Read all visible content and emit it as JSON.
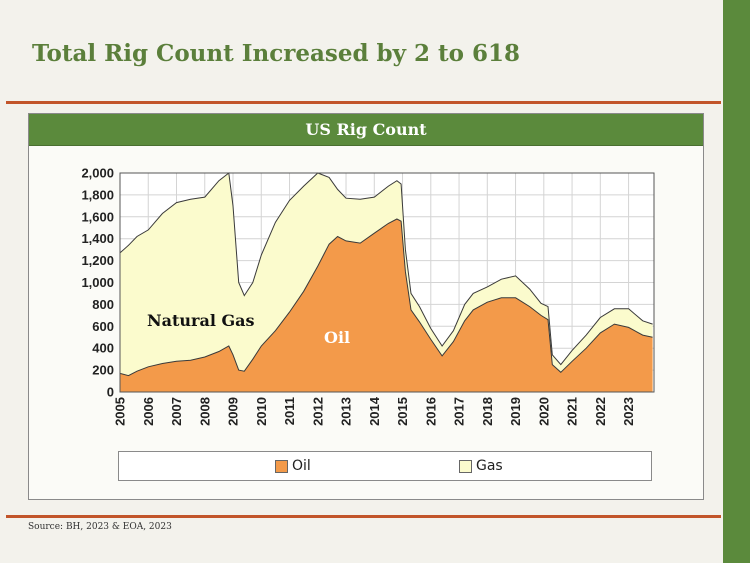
{
  "slide": {
    "title": "Total Rig Count Increased by 2 to 618",
    "source": "Source: BH, 2023 & EOA, 2023"
  },
  "colors": {
    "green_bar": "#5b8a3c",
    "title_green": "#5b7f3b",
    "rule_orange": "#c2552a",
    "oil": "#f39a4a",
    "gas": "#fbfbcd"
  },
  "chart_data": {
    "type": "area",
    "title": "US Rig Count",
    "ylim": [
      0,
      2000
    ],
    "yticks": [
      "0",
      "200",
      "400",
      "600",
      "800",
      "1,000",
      "1,200",
      "1,400",
      "1,600",
      "1,800",
      "2,000"
    ],
    "xticks": [
      "2005",
      "2006",
      "2007",
      "2008",
      "2009",
      "2010",
      "2011",
      "2012",
      "2013",
      "2014",
      "2015",
      "2016",
      "2017",
      "2018",
      "2019",
      "2020",
      "2021",
      "2022",
      "2023"
    ],
    "grid": true,
    "legend": "bottom",
    "annotations": [
      "Natural Gas",
      "Oil"
    ],
    "series": [
      {
        "name": "Oil",
        "stack": "bottom",
        "points": [
          [
            2005.0,
            170
          ],
          [
            2005.3,
            150
          ],
          [
            2005.6,
            190
          ],
          [
            2006.0,
            230
          ],
          [
            2006.5,
            260
          ],
          [
            2007.0,
            280
          ],
          [
            2007.5,
            290
          ],
          [
            2008.0,
            320
          ],
          [
            2008.5,
            370
          ],
          [
            2008.85,
            420
          ],
          [
            2009.0,
            340
          ],
          [
            2009.2,
            200
          ],
          [
            2009.4,
            190
          ],
          [
            2009.7,
            300
          ],
          [
            2010.0,
            420
          ],
          [
            2010.5,
            560
          ],
          [
            2011.0,
            730
          ],
          [
            2011.5,
            920
          ],
          [
            2012.0,
            1150
          ],
          [
            2012.4,
            1350
          ],
          [
            2012.7,
            1420
          ],
          [
            2013.0,
            1380
          ],
          [
            2013.5,
            1360
          ],
          [
            2014.0,
            1450
          ],
          [
            2014.5,
            1540
          ],
          [
            2014.8,
            1580
          ],
          [
            2014.95,
            1560
          ],
          [
            2015.1,
            1100
          ],
          [
            2015.3,
            750
          ],
          [
            2015.6,
            640
          ],
          [
            2016.0,
            480
          ],
          [
            2016.4,
            330
          ],
          [
            2016.8,
            460
          ],
          [
            2017.2,
            650
          ],
          [
            2017.5,
            750
          ],
          [
            2018.0,
            820
          ],
          [
            2018.5,
            860
          ],
          [
            2019.0,
            860
          ],
          [
            2019.5,
            780
          ],
          [
            2019.9,
            700
          ],
          [
            2020.15,
            660
          ],
          [
            2020.3,
            250
          ],
          [
            2020.6,
            180
          ],
          [
            2021.0,
            280
          ],
          [
            2021.5,
            400
          ],
          [
            2022.0,
            540
          ],
          [
            2022.5,
            620
          ],
          [
            2023.0,
            590
          ],
          [
            2023.5,
            520
          ],
          [
            2023.85,
            500
          ]
        ]
      },
      {
        "name": "Gas",
        "stack": "total",
        "points": [
          [
            2005.0,
            1270
          ],
          [
            2005.3,
            1340
          ],
          [
            2005.6,
            1420
          ],
          [
            2006.0,
            1480
          ],
          [
            2006.5,
            1630
          ],
          [
            2007.0,
            1730
          ],
          [
            2007.5,
            1760
          ],
          [
            2008.0,
            1780
          ],
          [
            2008.5,
            1930
          ],
          [
            2008.85,
            2000
          ],
          [
            2009.0,
            1700
          ],
          [
            2009.2,
            1000
          ],
          [
            2009.4,
            880
          ],
          [
            2009.7,
            1000
          ],
          [
            2010.0,
            1250
          ],
          [
            2010.5,
            1550
          ],
          [
            2011.0,
            1750
          ],
          [
            2011.5,
            1880
          ],
          [
            2012.0,
            2000
          ],
          [
            2012.4,
            1960
          ],
          [
            2012.7,
            1850
          ],
          [
            2013.0,
            1770
          ],
          [
            2013.5,
            1760
          ],
          [
            2014.0,
            1780
          ],
          [
            2014.5,
            1880
          ],
          [
            2014.8,
            1930
          ],
          [
            2014.95,
            1900
          ],
          [
            2015.1,
            1300
          ],
          [
            2015.3,
            900
          ],
          [
            2015.6,
            780
          ],
          [
            2016.0,
            580
          ],
          [
            2016.4,
            420
          ],
          [
            2016.8,
            560
          ],
          [
            2017.2,
            800
          ],
          [
            2017.5,
            900
          ],
          [
            2018.0,
            960
          ],
          [
            2018.5,
            1030
          ],
          [
            2019.0,
            1060
          ],
          [
            2019.5,
            940
          ],
          [
            2019.9,
            810
          ],
          [
            2020.15,
            780
          ],
          [
            2020.3,
            340
          ],
          [
            2020.6,
            250
          ],
          [
            2021.0,
            380
          ],
          [
            2021.5,
            520
          ],
          [
            2022.0,
            680
          ],
          [
            2022.5,
            760
          ],
          [
            2023.0,
            760
          ],
          [
            2023.5,
            650
          ],
          [
            2023.85,
            620
          ]
        ]
      }
    ]
  }
}
